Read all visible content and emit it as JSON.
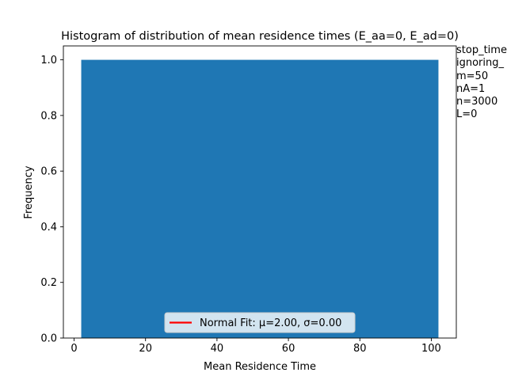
{
  "chart_data": {
    "type": "bar",
    "title": "Histogram of distribution of mean residence times (E_aa=0, E_ad=0)",
    "xlabel": "Mean Residence Time",
    "ylabel": "Frequency",
    "xlim": [
      -3.0,
      107.0
    ],
    "ylim": [
      0.0,
      1.05
    ],
    "xticks": [
      "0",
      "20",
      "40",
      "60",
      "80",
      "100"
    ],
    "yticks": [
      "0.0",
      "0.2",
      "0.4",
      "0.6",
      "0.8",
      "1.0"
    ],
    "bins": [
      {
        "x0": 2.0,
        "x1": 102.0,
        "value": 1.0
      }
    ],
    "bar_color": "#1f77b4",
    "legend": {
      "location": "lower center",
      "entries": [
        {
          "label": "Normal Fit: μ=2.00, σ=0.00",
          "color": "#ff0000"
        }
      ]
    },
    "side_text": [
      "stop_time",
      "ignoring_",
      "m=50",
      "nA=1",
      "n=3000",
      "L=0"
    ]
  }
}
